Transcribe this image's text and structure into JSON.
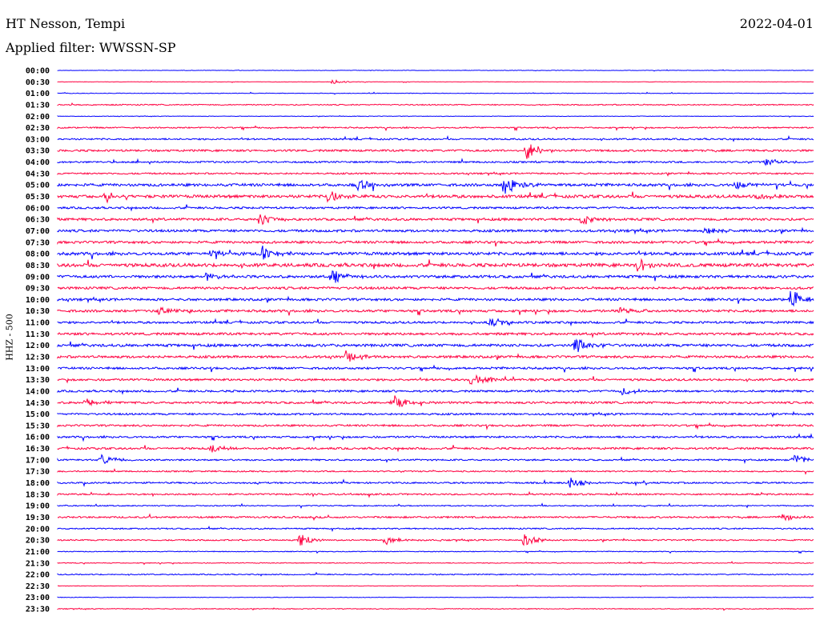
{
  "header": {
    "station": "HT Nesson, Tempi",
    "date": "2022-04-01",
    "filter": "Applied filter: WWSSN-SP"
  },
  "chart_data": {
    "type": "line",
    "title": "HT Nesson, Tempi",
    "ylabel": "HHZ - 500",
    "minutes_per_line": 30,
    "colors": [
      "#0000ff",
      "#ff0040"
    ],
    "rows": [
      "00:00",
      "00:30",
      "01:00",
      "01:30",
      "02:00",
      "02:30",
      "03:00",
      "03:30",
      "04:00",
      "04:30",
      "05:00",
      "05:30",
      "06:00",
      "06:30",
      "07:00",
      "07:30",
      "08:00",
      "08:30",
      "09:00",
      "09:30",
      "10:00",
      "10:30",
      "11:00",
      "11:30",
      "12:00",
      "12:30",
      "13:00",
      "13:30",
      "14:00",
      "14:30",
      "15:00",
      "15:30",
      "16:00",
      "16:30",
      "17:00",
      "17:30",
      "18:00",
      "18:30",
      "19:00",
      "19:30",
      "20:00",
      "20:30",
      "21:00",
      "21:30",
      "22:00",
      "22:30",
      "23:00",
      "23:30"
    ],
    "noise": [
      0.3,
      0.3,
      0.4,
      0.8,
      0.4,
      1.0,
      1.2,
      1.5,
      1.3,
      1.2,
      2.0,
      2.2,
      1.5,
      1.8,
      1.8,
      1.8,
      2.2,
      2.5,
      2.0,
      1.8,
      1.8,
      1.8,
      1.6,
      1.8,
      2.0,
      1.8,
      1.6,
      1.6,
      1.5,
      1.6,
      1.4,
      1.4,
      1.4,
      1.5,
      1.2,
      1.0,
      1.2,
      1.2,
      0.8,
      1.3,
      1.0,
      1.0,
      0.6,
      0.6,
      0.8,
      0.4,
      0.4,
      0.6
    ],
    "events": [
      {
        "row": 1,
        "minute": 10.9,
        "amp": 3
      },
      {
        "row": 7,
        "minute": 18.6,
        "amp": 14
      },
      {
        "row": 8,
        "minute": 28.1,
        "amp": 6
      },
      {
        "row": 10,
        "minute": 11.9,
        "amp": 8
      },
      {
        "row": 10,
        "minute": 17.7,
        "amp": 14
      },
      {
        "row": 10,
        "minute": 26.9,
        "amp": 6
      },
      {
        "row": 11,
        "minute": 1.8,
        "amp": 5
      },
      {
        "row": 11,
        "minute": 10.7,
        "amp": 10
      },
      {
        "row": 11,
        "minute": 27.7,
        "amp": 8
      },
      {
        "row": 13,
        "minute": 8.0,
        "amp": 8
      },
      {
        "row": 13,
        "minute": 20.8,
        "amp": 9
      },
      {
        "row": 14,
        "minute": 25.7,
        "amp": 7
      },
      {
        "row": 16,
        "minute": 6.0,
        "amp": 5
      },
      {
        "row": 16,
        "minute": 8.1,
        "amp": 10
      },
      {
        "row": 17,
        "minute": 23.0,
        "amp": 8
      },
      {
        "row": 18,
        "minute": 5.9,
        "amp": 5
      },
      {
        "row": 18,
        "minute": 10.9,
        "amp": 9
      },
      {
        "row": 20,
        "minute": 29.1,
        "amp": 13
      },
      {
        "row": 21,
        "minute": 4.0,
        "amp": 6
      },
      {
        "row": 21,
        "minute": 22.3,
        "amp": 5
      },
      {
        "row": 22,
        "minute": 17.1,
        "amp": 8
      },
      {
        "row": 24,
        "minute": 20.5,
        "amp": 10
      },
      {
        "row": 25,
        "minute": 11.4,
        "amp": 8
      },
      {
        "row": 27,
        "minute": 16.4,
        "amp": 10
      },
      {
        "row": 28,
        "minute": 22.4,
        "amp": 6
      },
      {
        "row": 29,
        "minute": 1.1,
        "amp": 6
      },
      {
        "row": 29,
        "minute": 13.3,
        "amp": 10
      },
      {
        "row": 33,
        "minute": 6.1,
        "amp": 5
      },
      {
        "row": 34,
        "minute": 1.7,
        "amp": 8
      },
      {
        "row": 34,
        "minute": 29.2,
        "amp": 8
      },
      {
        "row": 36,
        "minute": 20.3,
        "amp": 8
      },
      {
        "row": 39,
        "minute": 28.7,
        "amp": 6
      },
      {
        "row": 41,
        "minute": 9.6,
        "amp": 10
      },
      {
        "row": 41,
        "minute": 13.0,
        "amp": 6
      },
      {
        "row": 41,
        "minute": 18.5,
        "amp": 8
      }
    ]
  }
}
